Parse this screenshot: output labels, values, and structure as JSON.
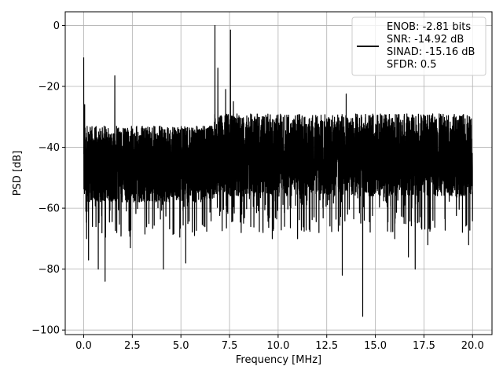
{
  "chart_data": {
    "type": "line",
    "title": "",
    "xlabel": "Frequency [MHz]",
    "ylabel": "PSD [dB]",
    "xlim": [
      -0.95,
      21.0
    ],
    "ylim": [
      -101.5,
      4.5
    ],
    "xticks": [
      0.0,
      2.5,
      5.0,
      7.5,
      10.0,
      12.5,
      15.0,
      17.5,
      20.0
    ],
    "xtick_labels": [
      "0.0",
      "2.5",
      "5.0",
      "7.5",
      "10.0",
      "12.5",
      "15.0",
      "17.5",
      "20.0"
    ],
    "yticks": [
      0,
      -20,
      -40,
      -60,
      -80,
      -100
    ],
    "ytick_labels": [
      "0",
      "−20",
      "−40",
      "−60",
      "−80",
      "−100"
    ],
    "grid": true,
    "legend_position": "top-right",
    "legend_entries": [
      "ENOB: -2.81 bits",
      "SNR: -14.92 dB",
      "SINAD: -15.16 dB",
      "SFDR: 0.5"
    ],
    "series": [
      {
        "color": "#000000",
        "x_range": [
          0.0,
          20.0
        ],
        "noise_floor_band_db": [
          -58,
          -33
        ],
        "noise_floor_band_db_above_7mhz": [
          -56,
          -29
        ],
        "deep_dips": [
          [
            0.15,
            -70
          ],
          [
            0.25,
            -77
          ],
          [
            0.45,
            -66
          ],
          [
            0.75,
            -80
          ],
          [
            1.1,
            -84
          ],
          [
            1.7,
            -68
          ],
          [
            2.4,
            -73
          ],
          [
            4.1,
            -80
          ],
          [
            5.25,
            -78
          ],
          [
            6.9,
            -64
          ],
          [
            8.1,
            -68
          ],
          [
            9.7,
            -70
          ],
          [
            11.0,
            -70
          ],
          [
            12.1,
            -68
          ],
          [
            13.3,
            -82
          ],
          [
            14.35,
            -95.5
          ],
          [
            16.0,
            -70
          ],
          [
            16.7,
            -76
          ],
          [
            17.05,
            -80
          ],
          [
            17.7,
            -72
          ],
          [
            19.8,
            -72
          ]
        ],
        "peaks": [
          [
            0.0,
            -10.5
          ],
          [
            0.05,
            -26
          ],
          [
            1.6,
            -16.5
          ],
          [
            6.75,
            0.0
          ],
          [
            6.9,
            -14
          ],
          [
            7.1,
            -30
          ],
          [
            7.3,
            -21
          ],
          [
            7.55,
            -1.5
          ],
          [
            7.7,
            -25
          ],
          [
            13.5,
            -22.5
          ]
        ]
      }
    ]
  }
}
